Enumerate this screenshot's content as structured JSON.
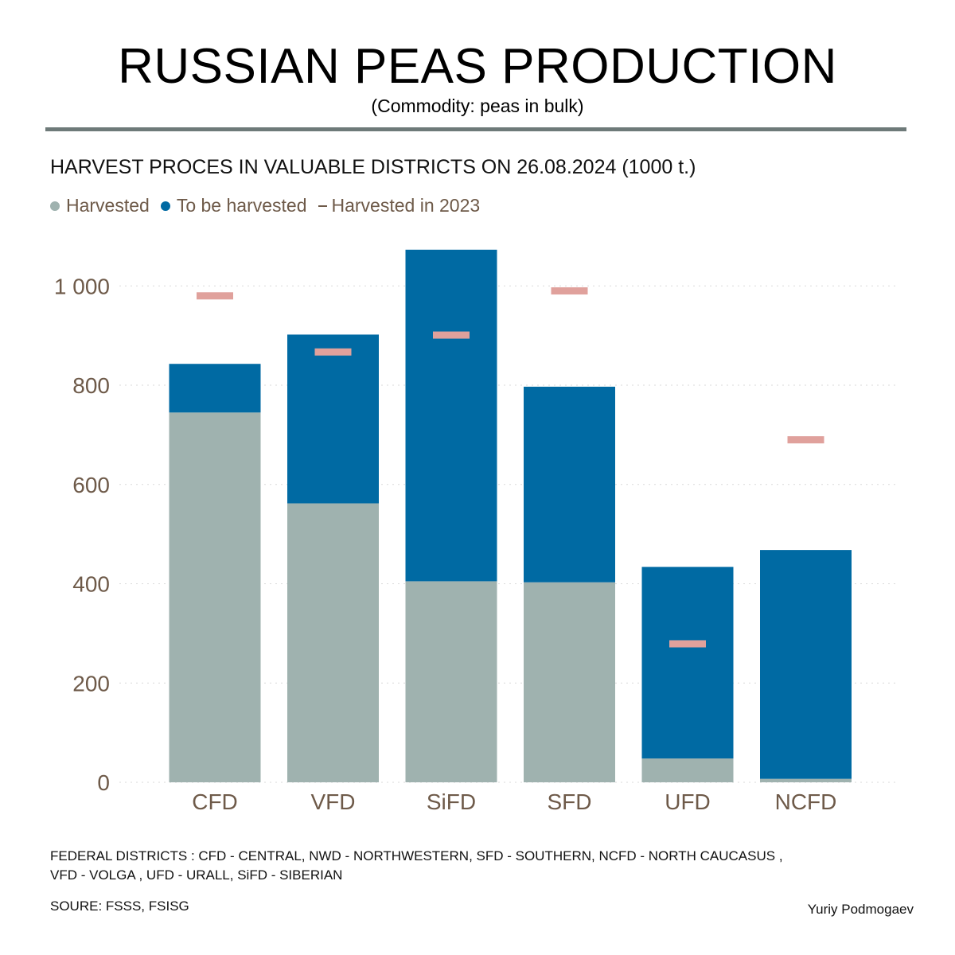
{
  "title": "RUSSIAN PEAS PRODUCTION",
  "subtitle": "(Commodity: peas in bulk)",
  "colors": {
    "harvested": "#9fb2af",
    "to_be_harvested": "#006aa3",
    "harvested_2023": "#e0a19c",
    "text_brown": "#6e5a49",
    "rule": "#6e7a79"
  },
  "chart_data": {
    "type": "bar",
    "title": "HARVEST PROCES IN VALUABLE DISTRICTS ON 26.08.2024 (1000 t.)",
    "stacked": true,
    "categories": [
      "CFD",
      "VFD",
      "SiFD",
      "SFD",
      "UFD",
      "NCFD"
    ],
    "series": [
      {
        "name": "Harvested",
        "values": [
          745,
          562,
          405,
          403,
          48,
          7
        ]
      },
      {
        "name": "To be harvested",
        "values": [
          98,
          340,
          668,
          394,
          386,
          461
        ]
      }
    ],
    "markers": {
      "name": "Harvested in 2023",
      "values": [
        980,
        867,
        901,
        990,
        279,
        690
      ]
    },
    "yticks": [
      0,
      200,
      400,
      600,
      800,
      1000
    ],
    "ytick_labels": [
      "0",
      "200",
      "400",
      "600",
      "800",
      "1 000"
    ],
    "ylim": [
      0,
      1100
    ],
    "grid": true,
    "legend_position": "top-left"
  },
  "footer": {
    "districts_line1": "FEDERAL DISTRICTS : CFD - CENTRAL, NWD - NORTHWESTERN, SFD - SOUTHERN, NCFD - NORTH CAUCASUS ,",
    "districts_line2": "VFD - VOLGA , UFD - URALL, SiFD - SIBERIAN",
    "source": "SOURE:  FSSS, FSISG",
    "author": "Yuriy Podmogaev"
  }
}
